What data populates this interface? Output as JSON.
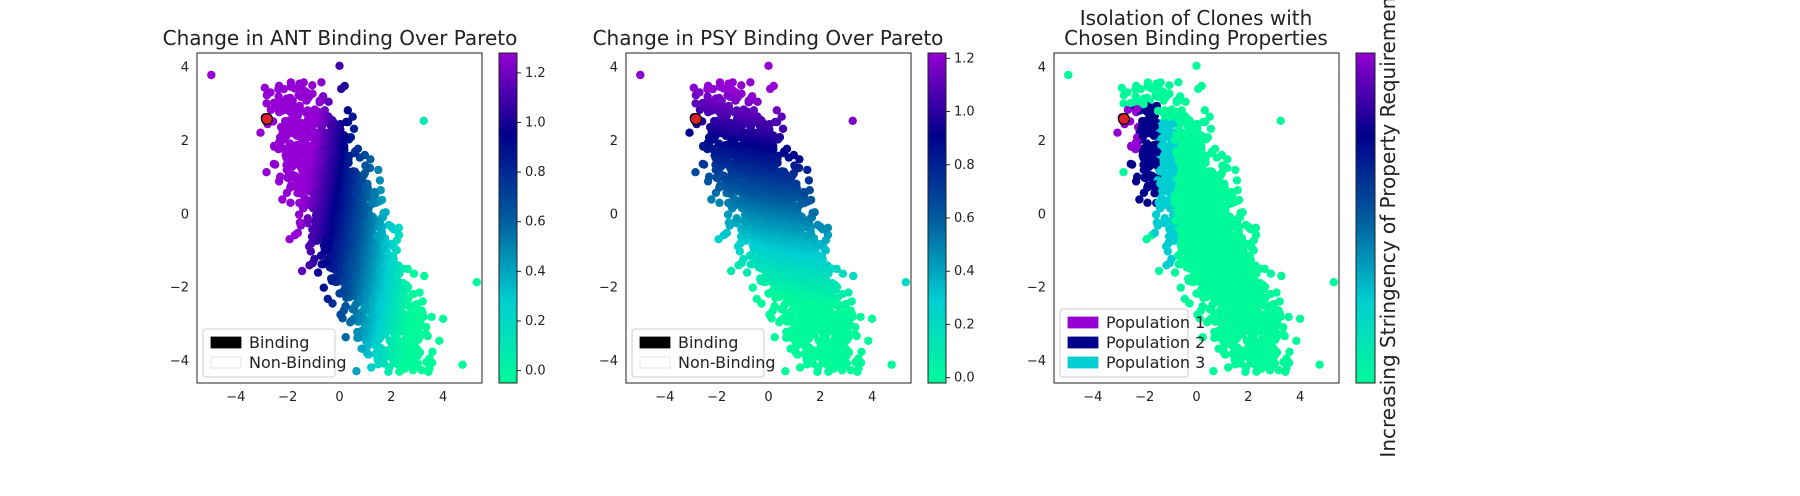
{
  "chart_data": [
    {
      "type": "scatter",
      "title": "Change in ANT Binding Over Pareto",
      "xlim": [
        -5.5,
        5.5
      ],
      "ylim": [
        -4.6,
        4.4
      ],
      "xticks": [
        -4,
        -2,
        0,
        2,
        4
      ],
      "yticks": [
        -4,
        -2,
        0,
        2,
        4
      ],
      "xtick_labels": [
        "−4",
        "−2",
        "0",
        "2",
        "4"
      ],
      "ytick_labels": [
        "−4",
        "−2",
        "0",
        "2",
        "4"
      ],
      "color_mode": "ant",
      "colorbar": {
        "range": [
          -0.05,
          1.28
        ],
        "ticks": [
          0.0,
          0.2,
          0.4,
          0.6,
          0.8,
          1.0,
          1.2
        ],
        "tick_labels": [
          "0.0",
          "0.2",
          "0.4",
          "0.6",
          "0.8",
          "1.0",
          "1.2"
        ],
        "label": ""
      },
      "legend": {
        "position": "lower-left",
        "entries": [
          {
            "label": "Binding",
            "color": "#000000"
          },
          {
            "label": "Non-Binding",
            "color": "#ffffff"
          }
        ]
      },
      "highlight_point": {
        "x": -2.8,
        "y": 2.6,
        "color": "#d8222a"
      }
    },
    {
      "type": "scatter",
      "title": "Change in PSY Binding Over Pareto",
      "xlim": [
        -5.5,
        5.5
      ],
      "ylim": [
        -4.6,
        4.4
      ],
      "xticks": [
        -4,
        -2,
        0,
        2,
        4
      ],
      "yticks": [
        -4,
        -2,
        0,
        2,
        4
      ],
      "xtick_labels": [
        "−4",
        "−2",
        "0",
        "2",
        "4"
      ],
      "ytick_labels": [
        "−4",
        "−2",
        "0",
        "2",
        "4"
      ],
      "color_mode": "psy",
      "colorbar": {
        "range": [
          -0.02,
          1.22
        ],
        "ticks": [
          0.0,
          0.2,
          0.4,
          0.6,
          0.8,
          1.0,
          1.2
        ],
        "tick_labels": [
          "0.0",
          "0.2",
          "0.4",
          "0.6",
          "0.8",
          "1.0",
          "1.2"
        ],
        "label": ""
      },
      "legend": {
        "position": "lower-left",
        "entries": [
          {
            "label": "Binding",
            "color": "#000000"
          },
          {
            "label": "Non-Binding",
            "color": "#ffffff"
          }
        ]
      },
      "highlight_point": {
        "x": -2.8,
        "y": 2.6,
        "color": "#d8222a"
      }
    },
    {
      "type": "scatter",
      "title": "Isolation of Clones with\nChosen Binding Properties",
      "xlim": [
        -5.5,
        5.5
      ],
      "ylim": [
        -4.6,
        4.4
      ],
      "xticks": [
        -4,
        -2,
        0,
        2,
        4
      ],
      "yticks": [
        -4,
        -2,
        0,
        2,
        4
      ],
      "xtick_labels": [
        "−4",
        "−2",
        "0",
        "2",
        "4"
      ],
      "ytick_labels": [
        "−4",
        "−2",
        "0",
        "2",
        "4"
      ],
      "color_mode": "population",
      "colorbar": {
        "range": [
          0,
          1
        ],
        "ticks": [],
        "tick_labels": [],
        "label": "Increasing Stringency of Property Requirements"
      },
      "legend": {
        "position": "lower-left",
        "entries": [
          {
            "label": "Population 1",
            "color": "#9400d3"
          },
          {
            "label": "Population 2",
            "color": "#00008b"
          },
          {
            "label": "Population 3",
            "color": "#00ced1"
          }
        ]
      },
      "highlight_point": {
        "x": -2.8,
        "y": 2.6,
        "color": "#d8222a"
      },
      "populations": [
        {
          "name": "Population 1",
          "color": "#9400d3"
        },
        {
          "name": "Population 2",
          "color": "#00008b"
        },
        {
          "name": "Population 3",
          "color": "#00ced1"
        },
        {
          "name": "",
          "color": "#00fa9a"
        }
      ]
    }
  ],
  "colormap": [
    "#00fa9a",
    "#00ced1",
    "#005b9e",
    "#00008b",
    "#9400d3"
  ],
  "point_count": 2200
}
